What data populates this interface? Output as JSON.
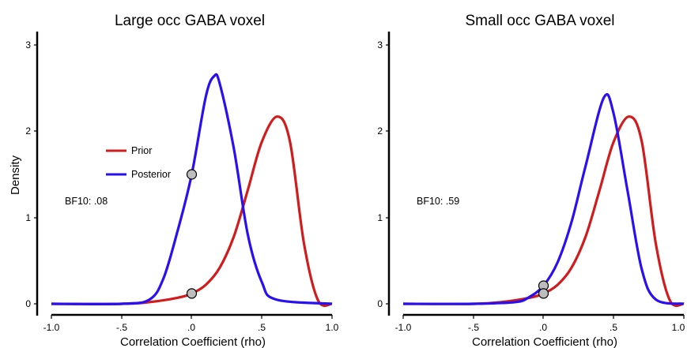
{
  "chart_data": [
    {
      "type": "line",
      "title": "Large occ GABA voxel",
      "xlabel": "Correlation Coefficient (rho)",
      "ylabel": "Density",
      "xlim": [
        -1.0,
        1.0
      ],
      "ylim": [
        0,
        3
      ],
      "x_ticks": [
        "-1.0",
        "-.5",
        ".0",
        ".5",
        "1.0"
      ],
      "y_ticks": [
        "0",
        "1",
        "2",
        "3"
      ],
      "legend": {
        "placement": "left",
        "entries": [
          "Prior",
          "Posterior"
        ]
      },
      "annotation": "BF10: .08",
      "series": [
        {
          "name": "Prior",
          "color": "#d01c1c",
          "mode": 0.61,
          "peak": 2.17,
          "x": [
            -1.0,
            -0.5,
            -0.3,
            -0.1,
            0.0,
            0.1,
            0.2,
            0.3,
            0.4,
            0.5,
            0.61,
            0.7,
            0.8,
            0.9,
            1.0
          ],
          "y": [
            0.0,
            0.0,
            0.02,
            0.07,
            0.12,
            0.22,
            0.42,
            0.78,
            1.32,
            1.88,
            2.17,
            1.88,
            0.7,
            0.04,
            0.0
          ]
        },
        {
          "name": "Posterior",
          "color": "#2a10f0",
          "mode": 0.16,
          "peak": 2.64,
          "x": [
            -1.0,
            -0.5,
            -0.3,
            -0.2,
            -0.1,
            0.0,
            0.1,
            0.16,
            0.2,
            0.3,
            0.4,
            0.5,
            0.6,
            1.0
          ],
          "y": [
            0.0,
            0.0,
            0.05,
            0.3,
            0.85,
            1.5,
            2.4,
            2.64,
            2.55,
            1.8,
            0.8,
            0.25,
            0.05,
            0.0
          ]
        }
      ],
      "points": [
        {
          "series": "Posterior",
          "x": 0.0,
          "y": 1.5
        },
        {
          "series": "Prior",
          "x": 0.0,
          "y": 0.12
        }
      ]
    },
    {
      "type": "line",
      "title": "Small occ GABA voxel",
      "xlabel": "Correlation Coefficient (rho)",
      "ylabel": "",
      "xlim": [
        -1.0,
        1.0
      ],
      "ylim": [
        0,
        3
      ],
      "x_ticks": [
        "-1.0",
        "-.5",
        ".0",
        ".5",
        "1.0"
      ],
      "y_ticks": [
        "0",
        "1",
        "2",
        "3"
      ],
      "annotation": "BF10: .59",
      "series": [
        {
          "name": "Prior",
          "color": "#d01c1c",
          "mode": 0.61,
          "peak": 2.17,
          "x": [
            -1.0,
            -0.5,
            -0.3,
            -0.1,
            0.0,
            0.1,
            0.2,
            0.3,
            0.4,
            0.5,
            0.61,
            0.7,
            0.8,
            0.9,
            1.0
          ],
          "y": [
            0.0,
            0.0,
            0.02,
            0.07,
            0.12,
            0.22,
            0.42,
            0.78,
            1.32,
            1.88,
            2.17,
            1.88,
            0.7,
            0.04,
            0.0
          ]
        },
        {
          "name": "Posterior",
          "color": "#2a10f0",
          "mode": 0.43,
          "peak": 2.39,
          "x": [
            -1.0,
            -0.5,
            -0.2,
            -0.1,
            0.0,
            0.1,
            0.2,
            0.3,
            0.43,
            0.5,
            0.6,
            0.7,
            0.8,
            1.0
          ],
          "y": [
            0.0,
            0.0,
            0.02,
            0.08,
            0.21,
            0.48,
            0.95,
            1.6,
            2.39,
            2.2,
            1.3,
            0.4,
            0.05,
            0.0
          ]
        }
      ],
      "points": [
        {
          "series": "Posterior",
          "x": 0.0,
          "y": 0.21
        },
        {
          "series": "Prior",
          "x": 0.0,
          "y": 0.12
        }
      ]
    }
  ]
}
